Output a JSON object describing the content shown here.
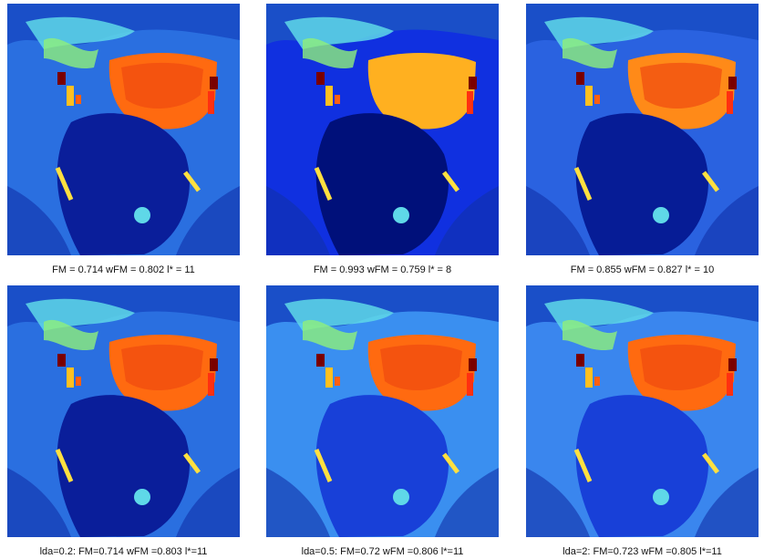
{
  "panels": [
    {
      "caption": "FM = 0.714 wFM = 0.802 l* = 11"
    },
    {
      "caption": "FM = 0.993 wFM = 0.759 l* = 8"
    },
    {
      "caption": "FM = 0.855 wFM = 0.827 l* = 10"
    },
    {
      "caption": "lda=0.2: FM=0.714 wFM =0.803 l*=11"
    },
    {
      "caption": "lda=0.5: FM=0.72 wFM =0.806 l*=11"
    },
    {
      "caption": "lda=2: FM=0.723 wFM =0.805 l*=11"
    }
  ]
}
